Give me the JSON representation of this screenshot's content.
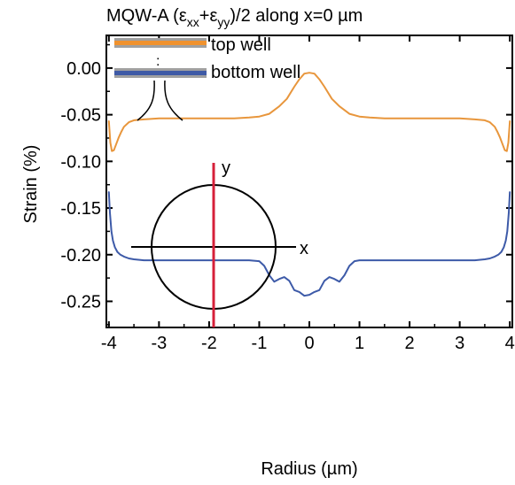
{
  "chart_data": {
    "type": "line",
    "title": "MQW-A (ε_xx+ε_yy)/2 along x=0 µm",
    "title_parts": {
      "prefix": "MQW-A (ε",
      "sub1": "xx",
      "mid": "+ε",
      "sub2": "yy",
      "suffix": ")/2 along x=0 µm"
    },
    "xlabel": "Radius (µm)",
    "ylabel": "Strain (%)",
    "xlim": [
      -4.05,
      4.05
    ],
    "ylim": [
      -0.278,
      0.035
    ],
    "xticks": [
      -4,
      -3,
      -2,
      -1,
      0,
      1,
      2,
      3,
      4
    ],
    "xtick_labels": [
      "-4",
      "-3",
      "-2",
      "-1",
      "0",
      "1",
      "2",
      "3",
      "4"
    ],
    "yticks": [
      0.0,
      -0.05,
      -0.1,
      -0.15,
      -0.2,
      -0.25
    ],
    "ytick_labels": [
      "0.00",
      "-0.05",
      "-0.10",
      "-0.15",
      "-0.20",
      "-0.25"
    ],
    "grid": false,
    "legend_position": "top-left",
    "series": [
      {
        "name": "top well",
        "color": "#e8963c",
        "x": [
          -4.0,
          -3.97,
          -3.94,
          -3.9,
          -3.85,
          -3.8,
          -3.75,
          -3.7,
          -3.6,
          -3.5,
          -3.3,
          -3.0,
          -2.5,
          -2.0,
          -1.5,
          -1.2,
          -1.0,
          -0.8,
          -0.6,
          -0.45,
          -0.3,
          -0.2,
          -0.1,
          0.0,
          0.1,
          0.2,
          0.3,
          0.45,
          0.6,
          0.8,
          1.0,
          1.2,
          1.5,
          2.0,
          2.5,
          3.0,
          3.3,
          3.5,
          3.6,
          3.7,
          3.75,
          3.8,
          3.85,
          3.9,
          3.94,
          3.97,
          4.0
        ],
        "y": [
          -0.057,
          -0.08,
          -0.089,
          -0.088,
          -0.081,
          -0.074,
          -0.068,
          -0.063,
          -0.058,
          -0.056,
          -0.055,
          -0.054,
          -0.054,
          -0.054,
          -0.054,
          -0.053,
          -0.052,
          -0.049,
          -0.041,
          -0.033,
          -0.02,
          -0.012,
          -0.006,
          -0.005,
          -0.006,
          -0.012,
          -0.02,
          -0.033,
          -0.041,
          -0.049,
          -0.052,
          -0.053,
          -0.054,
          -0.054,
          -0.054,
          -0.054,
          -0.055,
          -0.056,
          -0.058,
          -0.063,
          -0.068,
          -0.074,
          -0.081,
          -0.088,
          -0.089,
          -0.08,
          -0.057
        ]
      },
      {
        "name": "bottom well",
        "color": "#3d5aa8",
        "x": [
          -4.0,
          -3.98,
          -3.95,
          -3.92,
          -3.88,
          -3.83,
          -3.77,
          -3.7,
          -3.6,
          -3.5,
          -3.3,
          -3.0,
          -2.5,
          -2.0,
          -1.5,
          -1.2,
          -1.0,
          -0.9,
          -0.8,
          -0.7,
          -0.6,
          -0.5,
          -0.4,
          -0.3,
          -0.2,
          -0.1,
          0.0,
          0.1,
          0.2,
          0.3,
          0.4,
          0.5,
          0.6,
          0.7,
          0.8,
          0.9,
          1.0,
          1.2,
          1.5,
          2.0,
          2.5,
          3.0,
          3.3,
          3.5,
          3.6,
          3.7,
          3.77,
          3.83,
          3.88,
          3.92,
          3.95,
          3.98,
          4.0
        ],
        "y": [
          -0.133,
          -0.155,
          -0.175,
          -0.185,
          -0.192,
          -0.197,
          -0.2,
          -0.202,
          -0.204,
          -0.205,
          -0.206,
          -0.206,
          -0.206,
          -0.206,
          -0.206,
          -0.206,
          -0.207,
          -0.212,
          -0.222,
          -0.229,
          -0.226,
          -0.224,
          -0.228,
          -0.238,
          -0.24,
          -0.244,
          -0.243,
          -0.24,
          -0.238,
          -0.228,
          -0.224,
          -0.226,
          -0.229,
          -0.222,
          -0.212,
          -0.207,
          -0.206,
          -0.206,
          -0.206,
          -0.206,
          -0.206,
          -0.206,
          -0.206,
          -0.205,
          -0.204,
          -0.202,
          -0.2,
          -0.197,
          -0.192,
          -0.185,
          -0.175,
          -0.155,
          -0.133
        ]
      }
    ],
    "inset": {
      "x_axis_label": "x",
      "y_axis_label": "y",
      "circle_color": "#000000",
      "axis_color": "#000000",
      "cut_line_color": "#d6203a"
    },
    "legend_swatch": {
      "top_core": "#f0922e",
      "bottom_core": "#3e5aa6",
      "cladding": "#a0a0a0"
    },
    "annotations": {
      "dots": ":"
    }
  }
}
